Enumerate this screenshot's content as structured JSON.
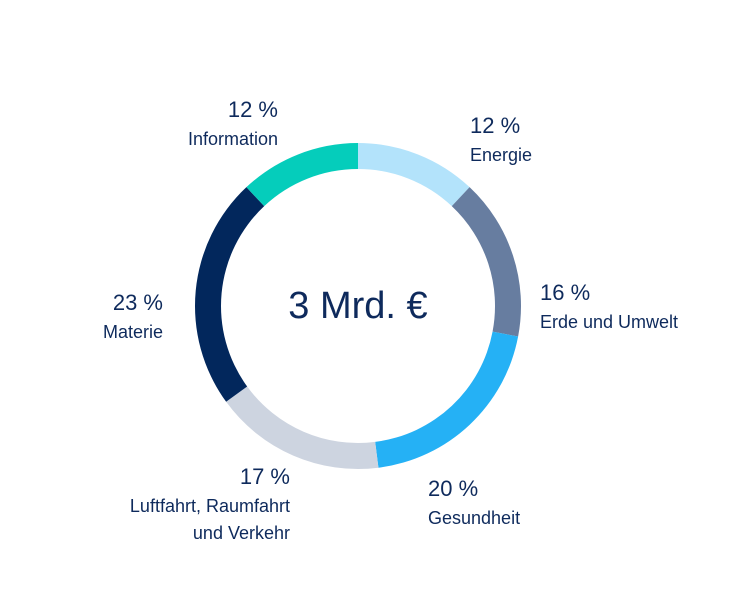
{
  "chart_data": {
    "type": "pie",
    "center_label": "3 Mrd. €",
    "slices": [
      {
        "label": "Energie",
        "percent_label": "12 %",
        "value": 12,
        "color": "#b3e3fb"
      },
      {
        "label": "Erde und Umwelt",
        "percent_label": "16 %",
        "value": 16,
        "color": "#677da0"
      },
      {
        "label": "Gesundheit",
        "percent_label": "20 %",
        "value": 20,
        "color": "#25b1f5"
      },
      {
        "label": "Luftfahrt, Raumfahrt und Verkehr",
        "label_lines": [
          "Luftfahrt, Raumfahrt",
          "und Verkehr"
        ],
        "percent_label": "17 %",
        "value": 17,
        "color": "#cdd4e0"
      },
      {
        "label": "Materie",
        "percent_label": "23 %",
        "value": 23,
        "color": "#02275c"
      },
      {
        "label": "Information",
        "percent_label": "12 %",
        "value": 12,
        "color": "#05cdbb"
      }
    ]
  }
}
